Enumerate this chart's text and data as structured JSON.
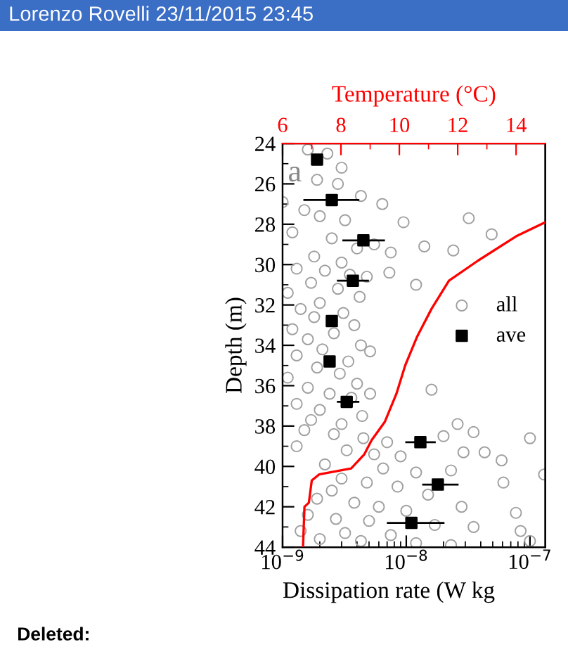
{
  "chart_data": {
    "type": "scatter",
    "xlabel": "Dissipation rate (W kg",
    "ylabel": "Depth (m)",
    "x2label": "Temperature (°C)",
    "annotations": [
      "Lorenzo Rovelli 23/11/2015 23:45",
      "a",
      "Deleted:"
    ],
    "log": "x",
    "xlim": [
      1e-09,
      1.33e-07
    ],
    "xticks": [
      {
        "value": 1e-09,
        "label": "10$^{−9}$"
      },
      {
        "value": 1e-08,
        "label": "10$^{−8}$"
      },
      {
        "value": 1e-07,
        "label": "10$^{−7}$"
      }
    ],
    "x2lim": [
      6,
      15
    ],
    "x2ticks": [
      6,
      8,
      10,
      12,
      14
    ],
    "ylim": [
      44,
      24
    ],
    "yticks": [
      24,
      26,
      28,
      30,
      32,
      34,
      36,
      38,
      40,
      42,
      44
    ],
    "legend": "right",
    "grid": false,
    "series": [
      {
        "name": "all",
        "marker": "circle",
        "color": "#a0a0a0",
        "x": [
          1.6e-09,
          2.3e-09,
          3e-09,
          1.9e-09,
          2.8e-09,
          4.3e-09,
          6.4e-09,
          9.5e-09,
          1e-09,
          1.5e-09,
          2e-09,
          3.2e-09,
          1.2e-09,
          2.5e-09,
          4e-09,
          5.5e-09,
          1.8e-09,
          3e-09,
          7.5e-09,
          3.2e-08,
          4.9e-08,
          2.4e-08,
          1.4e-08,
          1.2e-08,
          7.3e-09,
          1.3e-09,
          2.2e-09,
          3.5e-09,
          4.8e-09,
          1.7e-09,
          2.8e-09,
          1.1e-09,
          4.2e-09,
          2e-09,
          1.4e-09,
          3.1e-09,
          1.8e-09,
          3.8e-09,
          1.2e-09,
          2.6e-09,
          1.6e-09,
          4.3e-09,
          2.1e-09,
          1.3e-09,
          3.4e-09,
          1.9e-09,
          2.9e-09,
          1.1e-09,
          4e-09,
          1.6e-09,
          2.4e-09,
          3.6e-09,
          1.3e-09,
          2e-09,
          4.4e-09,
          1.7e-09,
          3e-09,
          5.1e-09,
          1.6e-08,
          2.6e-08,
          1e-07,
          5.1e-09,
          1.5e-09,
          2.6e-09,
          4.5e-09,
          7e-09,
          2e-08,
          3.5e-08,
          1.3e-09,
          3.3e-09,
          5.5e-09,
          9e-09,
          2.9e-08,
          4.3e-08,
          2.2e-09,
          6.5e-09,
          1.2e-08,
          2.3e-08,
          5.9e-08,
          3e-09,
          4.8e-09,
          8.5e-09,
          2.5e-09,
          1.5e-08,
          6.1e-08,
          1.3e-07,
          1.9e-09,
          3.8e-09,
          6e-09,
          1e-08,
          2.8e-08,
          1.6e-09,
          2.7e-09,
          5e-09,
          1.7e-08,
          3.5e-08,
          7.7e-08,
          1.4e-09,
          3.2e-09,
          7.5e-09,
          2e-09,
          4.3e-09,
          1.2e-08,
          8.4e-08,
          1e-07,
          2.3e-08
        ],
        "values": [
          24.3,
          24.5,
          25.2,
          25.8,
          26.0,
          26.6,
          27.0,
          27.9,
          26.9,
          27.3,
          27.6,
          27.8,
          28.4,
          28.7,
          29.2,
          29.0,
          29.6,
          29.9,
          29.4,
          27.7,
          28.5,
          29.3,
          29.1,
          31.0,
          30.4,
          30.2,
          30.3,
          30.5,
          30.6,
          30.9,
          31.2,
          31.4,
          31.6,
          31.9,
          32.2,
          32.4,
          32.6,
          33.0,
          33.2,
          33.4,
          33.7,
          34.0,
          34.2,
          34.5,
          34.8,
          35.1,
          35.4,
          35.6,
          35.9,
          36.1,
          36.4,
          36.6,
          36.9,
          37.2,
          37.5,
          37.7,
          37.9,
          34.3,
          36.2,
          37.9,
          38.6,
          36.4,
          38.2,
          38.4,
          38.6,
          38.8,
          38.5,
          38.3,
          39.0,
          39.2,
          39.4,
          39.5,
          39.3,
          39.3,
          39.9,
          40.1,
          40.3,
          40.2,
          39.7,
          40.6,
          40.8,
          41.0,
          41.2,
          41.4,
          40.8,
          40.4,
          41.6,
          41.8,
          42.0,
          42.2,
          42.0,
          42.4,
          42.6,
          42.7,
          42.9,
          43.0,
          42.3,
          43.2,
          43.3,
          43.4,
          43.6,
          43.7,
          43.8,
          43.2,
          43.7,
          43.9
        ]
      },
      {
        "name": "ave",
        "marker": "square",
        "color": "#000000",
        "x": [
          1.9e-09,
          2.5e-09,
          4.5e-09,
          3.7e-09,
          2.5e-09,
          2.4e-09,
          3.3e-09,
          1.3e-08,
          1.8e-08,
          1.1e-08
        ],
        "values": [
          24.8,
          26.8,
          28.8,
          30.8,
          32.8,
          34.8,
          36.8,
          38.8,
          40.9,
          42.8
        ],
        "xerrors": [
          null,
          [
            1.5e-09,
            4.1e-09
          ],
          [
            3.1e-09,
            6.6e-09
          ],
          [
            2.8e-09,
            4.9e-09
          ],
          null,
          null,
          [
            2.8e-09,
            4.1e-09
          ],
          [
            1e-08,
            1.7e-08
          ],
          [
            1.37e-08,
            2.6e-08
          ],
          [
            7.1e-09,
            2e-08
          ]
        ]
      },
      {
        "type": "line",
        "axis": "x2",
        "marker": "none",
        "line_style": "solid",
        "color": "#ff0000",
        "x": [
          15,
          14,
          12.7,
          11.7,
          11.1,
          10.6,
          10.2,
          9.9,
          9.5,
          9.05,
          8.8,
          8.35,
          7.25,
          7.0,
          6.9,
          6.75,
          6.7
        ],
        "values": [
          27.9,
          28.6,
          29.8,
          30.8,
          32.2,
          33.6,
          35.0,
          36.4,
          37.8,
          38.7,
          39.4,
          40.1,
          40.4,
          40.7,
          41.8,
          42.0,
          44
        ]
      }
    ]
  }
}
